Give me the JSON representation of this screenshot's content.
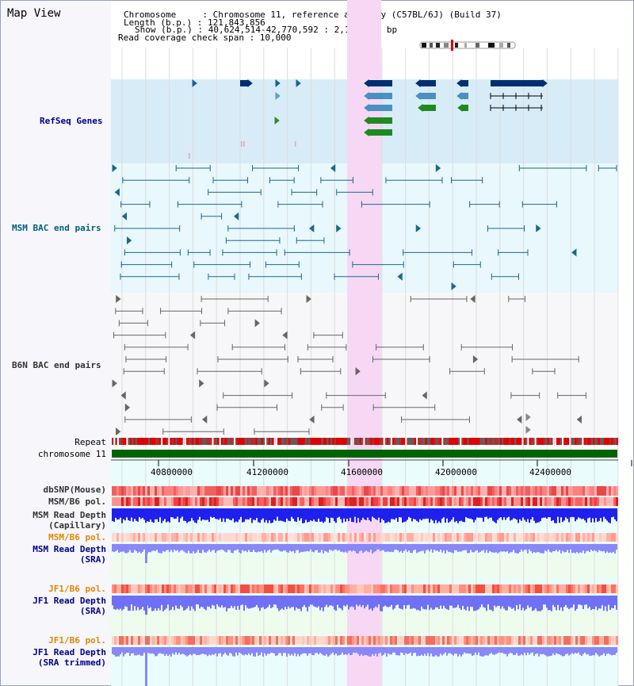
{
  "header": {
    "view_title": "Map View",
    "line1": "Chromosome     : Chromosome 11, reference assembly (C57BL/6J) (Build 37)",
    "line2": "Length (b.p.) : 121,843,856",
    "line3": "Show (b.p.) : 40,624,514-42,770,592 : 2,146,079 bp",
    "line4": "Read coverage check span : 10,000"
  },
  "tracks": {
    "refseq": "RefSeq Genes",
    "msm_bac": "MSM BAC end pairs",
    "b6n_bac": "B6N BAC end pairs",
    "repeat": "Repeat",
    "chromosome": "chromosome 11",
    "dbsnp": "dbSNP(Mouse)",
    "msm_b6_pol": "MSM/B6 pol.",
    "msm_depth_cap_1": "MSM Read Depth",
    "msm_depth_cap_2": "(Capillary)",
    "msm_b6_pol_2": "MSM/B6 pol.",
    "msm_depth_sra_1": "MSM Read Depth",
    "msm_depth_sra_2": "(SRA)",
    "jf1_b6_pol": "JF1/B6 pol.",
    "jf1_depth_sra_1": "JF1 Read Depth",
    "jf1_depth_sra_2": "(SRA)",
    "jf1_b6_pol_2": "JF1/B6 pol.",
    "jf1_depth_trim_1": "JF1 Read Depth",
    "jf1_depth_trim_2": "(SRA trimmed)"
  },
  "axis": {
    "ticks": [
      "40800000",
      "41200000",
      "41600000",
      "42000000",
      "42400000"
    ]
  },
  "colors": {
    "refseq_label": "#00008b",
    "msm_label": "#005f7f",
    "b6n_label": "#333333",
    "pol_label": "#e08800",
    "depth_label": "#00008b",
    "highlight": "#f6d8f4",
    "refseq_bg": "#d8ecf8",
    "msm_bg": "#e8f8fc",
    "chrom_bar": "#006400",
    "cap_depth": "#2020ee",
    "sra_depth": "#7a7af8"
  }
}
